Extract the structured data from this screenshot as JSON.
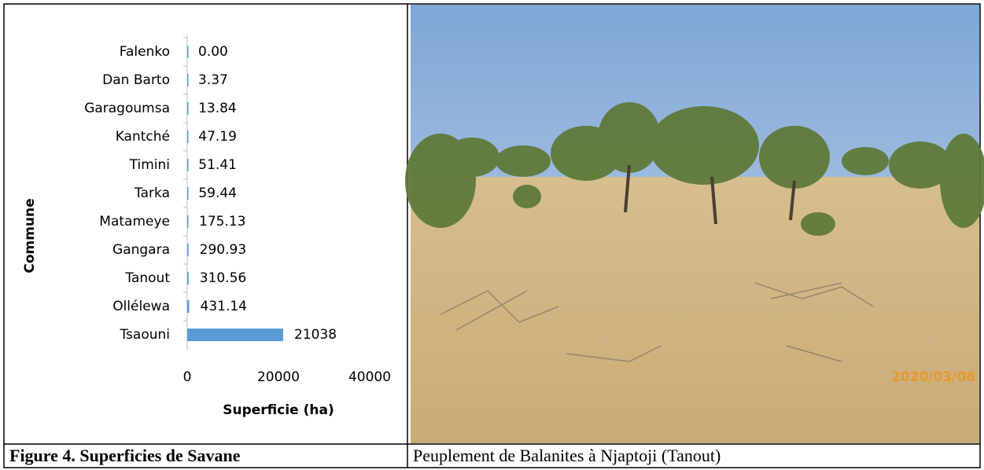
{
  "chart_data": {
    "type": "bar",
    "orientation": "horizontal",
    "categories": [
      "Falenko",
      "Dan Barto",
      "Garagoumsa",
      "Kantché",
      "Timini",
      "Tarka",
      "Matameye",
      "Gangara",
      "Tanout",
      "Ollélewa",
      "Tsaouni"
    ],
    "values": [
      0,
      3.37,
      13.84,
      47.19,
      51.41,
      59.44,
      175.13,
      290.93,
      310.56,
      431.14,
      21038
    ],
    "value_labels": [
      "0.00",
      "3.37",
      "13.84",
      "47.19",
      "51.41",
      "59.44",
      "175.13",
      "290.93",
      "310.56",
      "431.14",
      "21038"
    ],
    "color": "#5b9bd5",
    "xlim": [
      0,
      40000
    ],
    "xticks": [
      0,
      20000,
      40000
    ],
    "x_label": "Superficie (ha)",
    "y_label": "Commune"
  },
  "photo": {
    "timestamp": "2020/03/08"
  },
  "captions": {
    "left": "Figure 4. Superficies de Savane",
    "right": "Peuplement de Balanites à Njaptoji (Tanout)"
  }
}
